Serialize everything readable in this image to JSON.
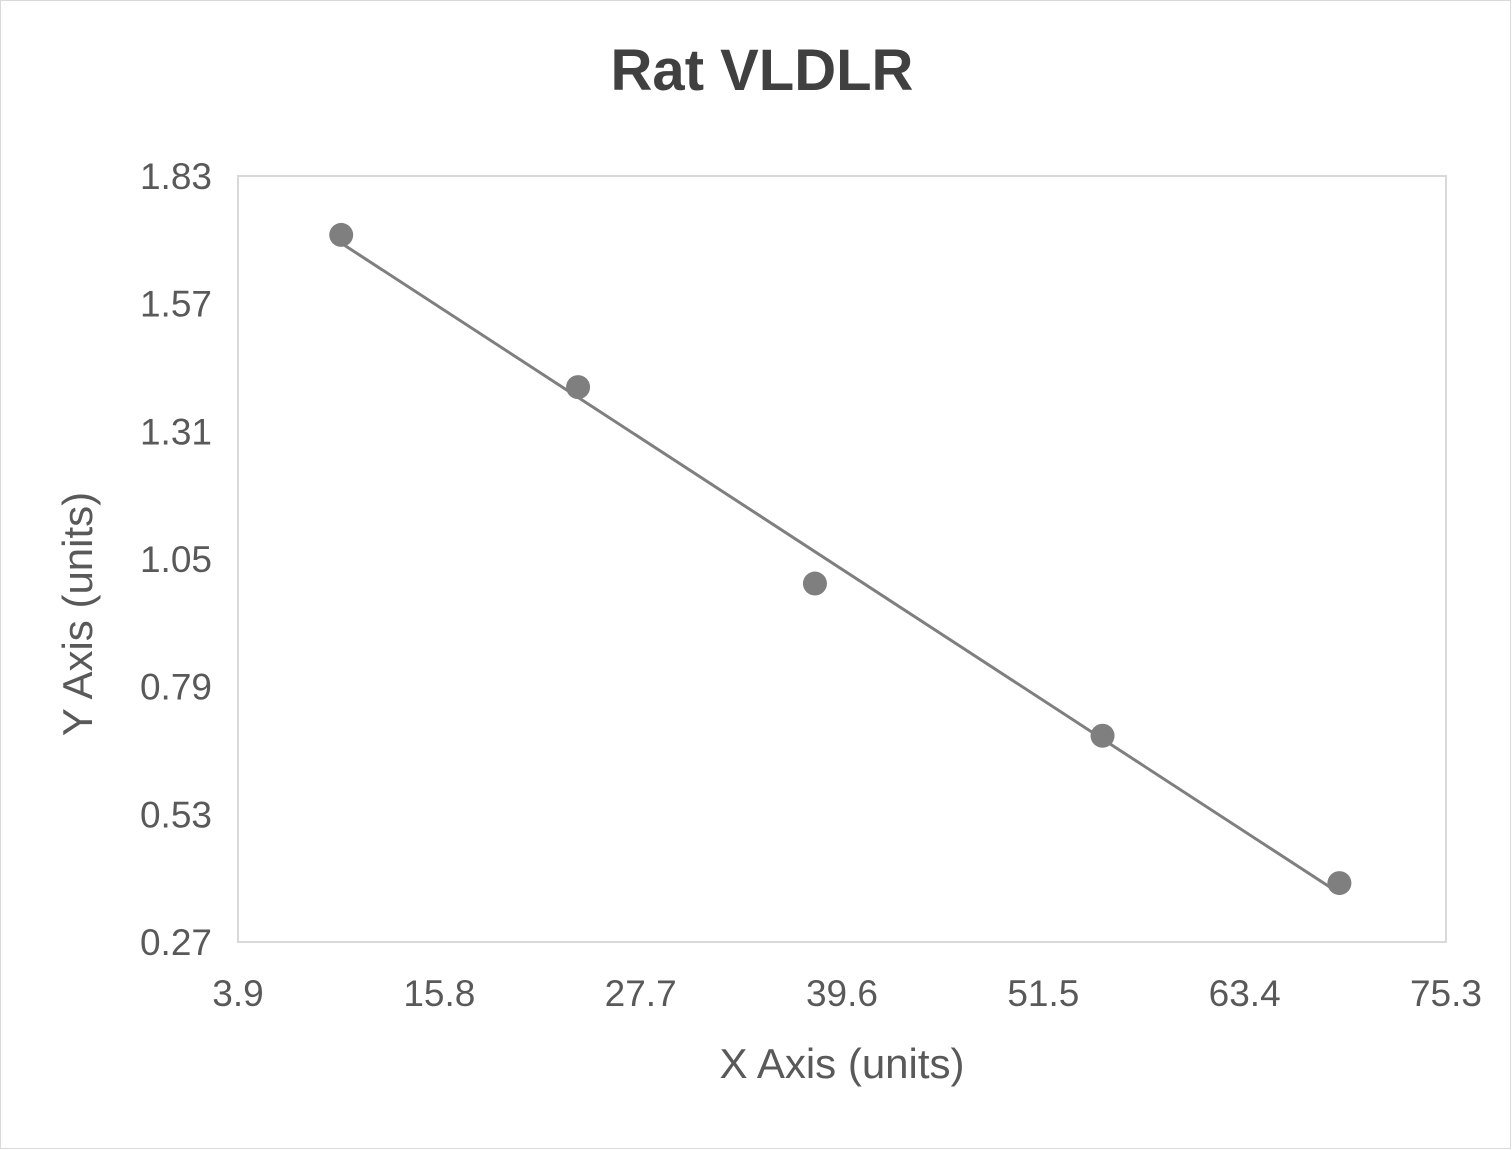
{
  "chart_data": {
    "type": "scatter",
    "title": "Rat VLDLR",
    "xlabel": "X Axis (units)",
    "ylabel": "Y Axis (units)",
    "xlim": [
      3.9,
      75.3
    ],
    "ylim": [
      0.27,
      1.83
    ],
    "xticks": [
      "3.9",
      "15.8",
      "27.7",
      "39.6",
      "51.5",
      "63.4",
      "75.3"
    ],
    "yticks": [
      "0.27",
      "0.53",
      "0.79",
      "1.05",
      "1.31",
      "1.57",
      "1.83"
    ],
    "grid": false,
    "trendline": "linear",
    "series": [
      {
        "name": "Rat VLDLR",
        "x": [
          10,
          24,
          38,
          55,
          69
        ],
        "y": [
          1.71,
          1.4,
          1.0,
          0.69,
          0.39
        ]
      }
    ],
    "colors": {
      "marker": "#7f7f7f",
      "line": "#7f7f7f",
      "plot_border": "#d9d9d9"
    }
  }
}
